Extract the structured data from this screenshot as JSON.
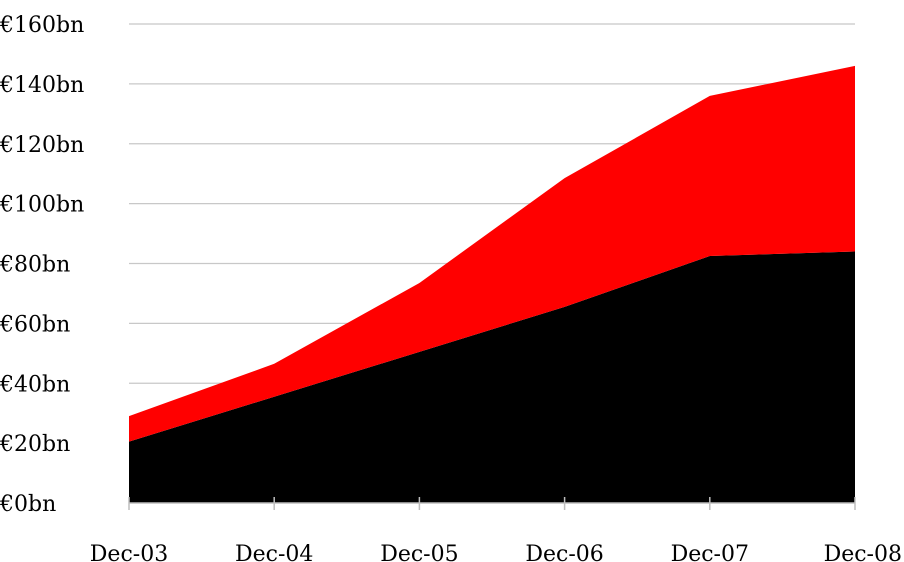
{
  "chart_data": {
    "type": "area",
    "stacked": true,
    "categories": [
      "Dec-03",
      "Dec-04",
      "Dec-05",
      "Dec-06",
      "Dec-07",
      "Dec-08"
    ],
    "series": [
      {
        "color": "#000000",
        "values": [
          20.5,
          35.5,
          50.5,
          65.5,
          82.5,
          84
        ]
      },
      {
        "color": "#ff0000",
        "values": [
          8.5,
          11,
          23,
          43,
          53.5,
          62
        ]
      }
    ],
    "ylim": [
      0,
      160
    ],
    "yticks": [
      0,
      20,
      40,
      60,
      80,
      100,
      120,
      140,
      160
    ],
    "ytick_labels": [
      "€0bn",
      "€20bn",
      "€40bn",
      "€60bn",
      "€80bn",
      "€100bn",
      "€120bn",
      "€140bn",
      "€160bn"
    ],
    "grid": true,
    "title": "",
    "xlabel": "",
    "ylabel": ""
  }
}
